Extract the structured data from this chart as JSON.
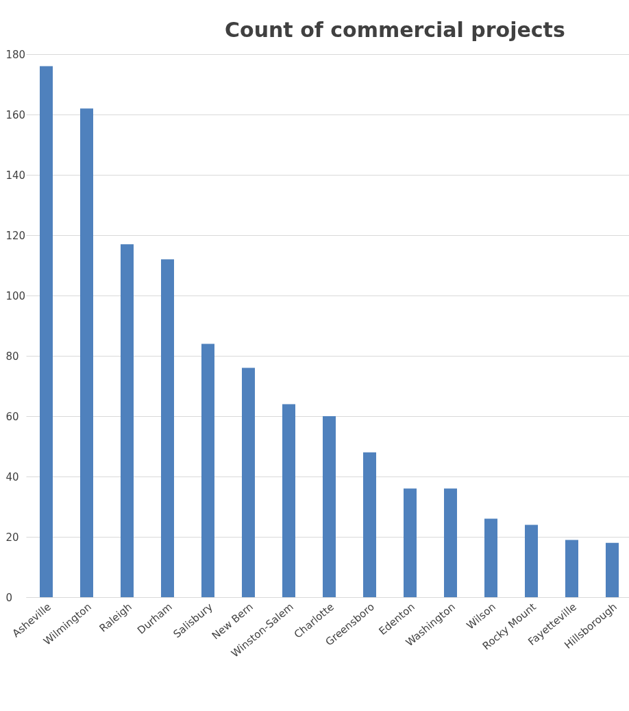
{
  "chart_data": {
    "type": "bar",
    "title": "Count of commercial projects",
    "categories": [
      "Asheville",
      "Wilmington",
      "Raleigh",
      "Durham",
      "Salisbury",
      "New Bern",
      "Winston-Salem",
      "Charlotte",
      "Greensboro",
      "Edenton",
      "Washington",
      "Wilson",
      "Rocky Mount",
      "Fayetteville",
      "Hillsborough"
    ],
    "values": [
      176,
      162,
      117,
      112,
      84,
      76,
      64,
      60,
      48,
      36,
      36,
      26,
      24,
      19,
      18
    ],
    "color": "#4f81bd",
    "ylim": [
      0,
      180
    ],
    "yticks": [
      0,
      20,
      40,
      60,
      80,
      100,
      120,
      140,
      160,
      180
    ],
    "grid": "y"
  }
}
